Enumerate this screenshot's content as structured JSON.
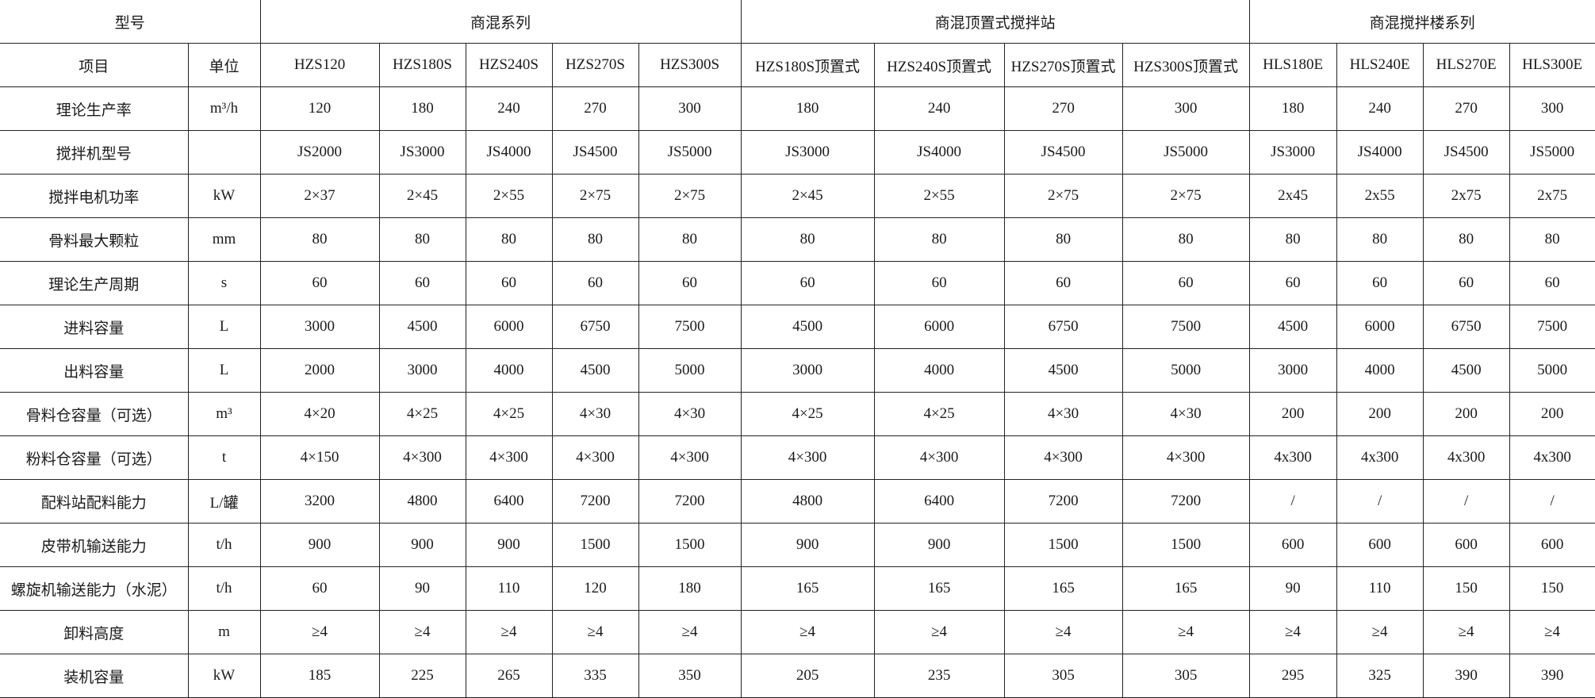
{
  "header": {
    "model_label": "型号",
    "groups": [
      "商混系列",
      "商混顶置式搅拌站",
      "商混搅拌楼系列"
    ],
    "item_label": "项目",
    "unit_label": "单位",
    "models": [
      "HZS120",
      "HZS180S",
      "HZS240S",
      "HZS270S",
      "HZS300S",
      "HZS180S顶置式",
      "HZS240S顶置式",
      "HZS270S顶置式",
      "HZS300S顶置式",
      "HLS180E",
      "HLS240E",
      "HLS270E",
      "HLS300E"
    ]
  },
  "rows": [
    {
      "label": "理论生产率",
      "unit": "m³/h",
      "values": [
        "120",
        "180",
        "240",
        "270",
        "300",
        "180",
        "240",
        "270",
        "300",
        "180",
        "240",
        "270",
        "300"
      ]
    },
    {
      "label": "搅拌机型号",
      "unit": "",
      "values": [
        "JS2000",
        "JS3000",
        "JS4000",
        "JS4500",
        "JS5000",
        "JS3000",
        "JS4000",
        "JS4500",
        "JS5000",
        "JS3000",
        "JS4000",
        "JS4500",
        "JS5000"
      ]
    },
    {
      "label": "搅拌电机功率",
      "unit": "kW",
      "values": [
        "2×37",
        "2×45",
        "2×55",
        "2×75",
        "2×75",
        "2×45",
        "2×55",
        "2×75",
        "2×75",
        "2x45",
        "2x55",
        "2x75",
        "2x75"
      ]
    },
    {
      "label": "骨料最大颗粒",
      "unit": "mm",
      "values": [
        "80",
        "80",
        "80",
        "80",
        "80",
        "80",
        "80",
        "80",
        "80",
        "80",
        "80",
        "80",
        "80"
      ]
    },
    {
      "label": "理论生产周期",
      "unit": "s",
      "values": [
        "60",
        "60",
        "60",
        "60",
        "60",
        "60",
        "60",
        "60",
        "60",
        "60",
        "60",
        "60",
        "60"
      ]
    },
    {
      "label": "进料容量",
      "unit": "L",
      "values": [
        "3000",
        "4500",
        "6000",
        "6750",
        "7500",
        "4500",
        "6000",
        "6750",
        "7500",
        "4500",
        "6000",
        "6750",
        "7500"
      ]
    },
    {
      "label": "出料容量",
      "unit": "L",
      "values": [
        "2000",
        "3000",
        "4000",
        "4500",
        "5000",
        "3000",
        "4000",
        "4500",
        "5000",
        "3000",
        "4000",
        "4500",
        "5000"
      ]
    },
    {
      "label": "骨料仓容量（可选）",
      "unit": "m³",
      "values": [
        "4×20",
        "4×25",
        "4×25",
        "4×30",
        "4×30",
        "4×25",
        "4×25",
        "4×30",
        "4×30",
        "200",
        "200",
        "200",
        "200"
      ]
    },
    {
      "label": "粉料仓容量（可选）",
      "unit": "t",
      "values": [
        "4×150",
        "4×300",
        "4×300",
        "4×300",
        "4×300",
        "4×300",
        "4×300",
        "4×300",
        "4×300",
        "4x300",
        "4x300",
        "4x300",
        "4x300"
      ]
    },
    {
      "label": "配料站配料能力",
      "unit": "L/罐",
      "values": [
        "3200",
        "4800",
        "6400",
        "7200",
        "7200",
        "4800",
        "6400",
        "7200",
        "7200",
        "/",
        "/",
        "/",
        "/"
      ]
    },
    {
      "label": "皮带机输送能力",
      "unit": "t/h",
      "values": [
        "900",
        "900",
        "900",
        "1500",
        "1500",
        "900",
        "900",
        "1500",
        "1500",
        "600",
        "600",
        "600",
        "600"
      ]
    },
    {
      "label": "螺旋机输送能力（水泥）",
      "unit": "t/h",
      "values": [
        "60",
        "90",
        "110",
        "120",
        "180",
        "165",
        "165",
        "165",
        "165",
        "90",
        "110",
        "150",
        "150"
      ]
    },
    {
      "label": "卸料高度",
      "unit": "m",
      "values": [
        "≥4",
        "≥4",
        "≥4",
        "≥4",
        "≥4",
        "≥4",
        "≥4",
        "≥4",
        "≥4",
        "≥4",
        "≥4",
        "≥4",
        "≥4"
      ]
    },
    {
      "label": "装机容量",
      "unit": "kW",
      "values": [
        "185",
        "225",
        "265",
        "335",
        "350",
        "205",
        "235",
        "305",
        "305",
        "295",
        "325",
        "390",
        "390"
      ]
    }
  ]
}
